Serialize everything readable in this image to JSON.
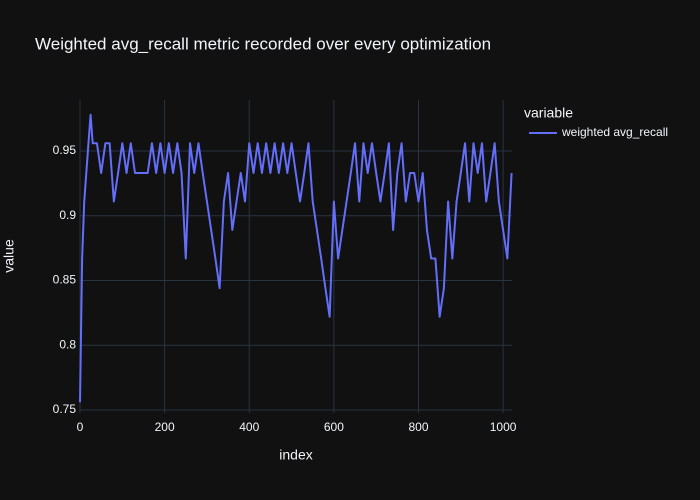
{
  "chart_data": {
    "type": "line",
    "title": "Weighted avg_recall metric recorded over every optimization",
    "x_label": "index",
    "y_label": "value",
    "legend_title": "variable",
    "legend_position": "right",
    "grid": true,
    "x": [
      0,
      5,
      10,
      20,
      25,
      30,
      40,
      50,
      60,
      70,
      80,
      90,
      100,
      110,
      120,
      130,
      140,
      150,
      160,
      170,
      180,
      190,
      200,
      210,
      220,
      230,
      240,
      250,
      260,
      270,
      280,
      290,
      300,
      310,
      320,
      330,
      340,
      350,
      360,
      370,
      380,
      390,
      400,
      410,
      420,
      430,
      440,
      450,
      460,
      470,
      480,
      490,
      500,
      510,
      520,
      530,
      540,
      550,
      560,
      570,
      580,
      590,
      600,
      610,
      620,
      630,
      640,
      650,
      660,
      670,
      680,
      690,
      700,
      710,
      720,
      730,
      740,
      750,
      760,
      770,
      780,
      790,
      800,
      810,
      820,
      830,
      840,
      850,
      860,
      870,
      880,
      890,
      900,
      910,
      920,
      930,
      940,
      950,
      960,
      970,
      980,
      990,
      1000,
      1010,
      1020
    ],
    "series": [
      {
        "name": "weighted avg_recall",
        "color": "#636efa",
        "values": [
          0.756,
          0.867,
          0.911,
          0.956,
          0.978,
          0.956,
          0.956,
          0.933,
          0.956,
          0.956,
          0.911,
          0.933,
          0.956,
          0.933,
          0.956,
          0.933,
          0.933,
          0.933,
          0.933,
          0.956,
          0.933,
          0.956,
          0.933,
          0.956,
          0.933,
          0.956,
          0.933,
          0.867,
          0.956,
          0.933,
          0.956,
          0.933,
          0.911,
          0.889,
          0.867,
          0.844,
          0.911,
          0.933,
          0.889,
          0.911,
          0.933,
          0.911,
          0.956,
          0.933,
          0.956,
          0.933,
          0.956,
          0.933,
          0.956,
          0.933,
          0.956,
          0.933,
          0.956,
          0.933,
          0.911,
          0.933,
          0.956,
          0.911,
          0.889,
          0.867,
          0.844,
          0.822,
          0.911,
          0.867,
          0.889,
          0.911,
          0.933,
          0.956,
          0.911,
          0.956,
          0.933,
          0.956,
          0.933,
          0.911,
          0.933,
          0.956,
          0.889,
          0.933,
          0.956,
          0.911,
          0.933,
          0.933,
          0.911,
          0.933,
          0.889,
          0.867,
          0.867,
          0.822,
          0.844,
          0.911,
          0.867,
          0.911,
          0.933,
          0.956,
          0.911,
          0.956,
          0.933,
          0.956,
          0.911,
          0.933,
          0.956,
          0.911,
          0.889,
          0.867,
          0.933
        ]
      }
    ],
    "xlim": [
      0,
      1021
    ],
    "xticks": [
      0,
      200,
      400,
      600,
      800,
      1000
    ],
    "ylim": [
      0.7477,
      0.9894
    ],
    "yticks": [
      0.75,
      0.8,
      0.85,
      0.9,
      0.95
    ]
  }
}
